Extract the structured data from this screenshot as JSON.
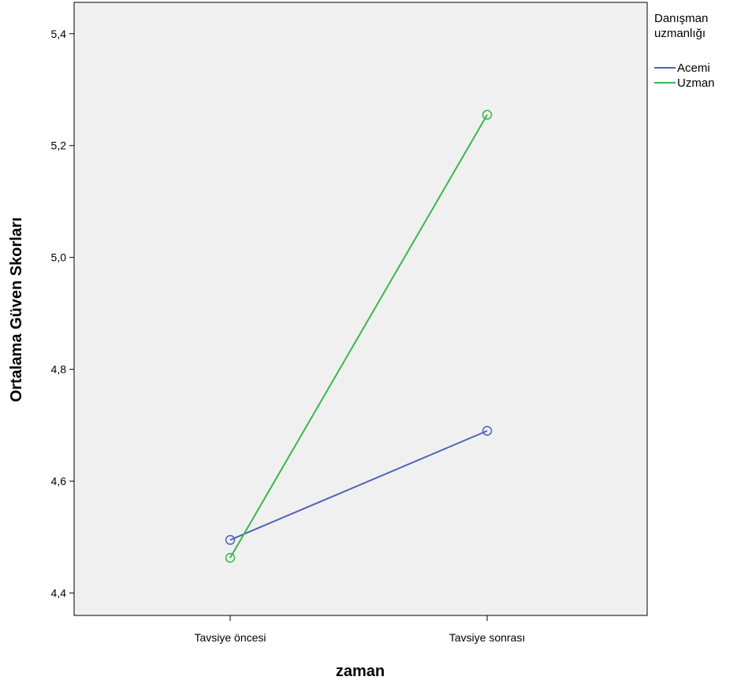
{
  "chart_data": {
    "type": "line",
    "xlabel": "zaman",
    "ylabel": "Ortalama Güven Skorları",
    "categories": [
      "Tavsiye öncesi",
      "Tavsiye sonrası"
    ],
    "ylim": [
      4.36,
      5.456
    ],
    "yticks": [
      4.4,
      4.6,
      4.8,
      5.0,
      5.2,
      5.4
    ],
    "ytick_labels": [
      "4,4",
      "4,6",
      "4,8",
      "5,0",
      "5,2",
      "5,4"
    ],
    "grid": false,
    "legend": {
      "title_lines": [
        "Danışman",
        "uzmanlığı"
      ],
      "placement": "right"
    },
    "series": [
      {
        "name": "Acemi",
        "color": "#4f62b8",
        "values": [
          4.495,
          4.69
        ]
      },
      {
        "name": "Uzman",
        "color": "#38b84a",
        "values": [
          4.463,
          5.255
        ]
      }
    ],
    "marker": "open-circle",
    "plot_background": "#f0f0f0"
  }
}
